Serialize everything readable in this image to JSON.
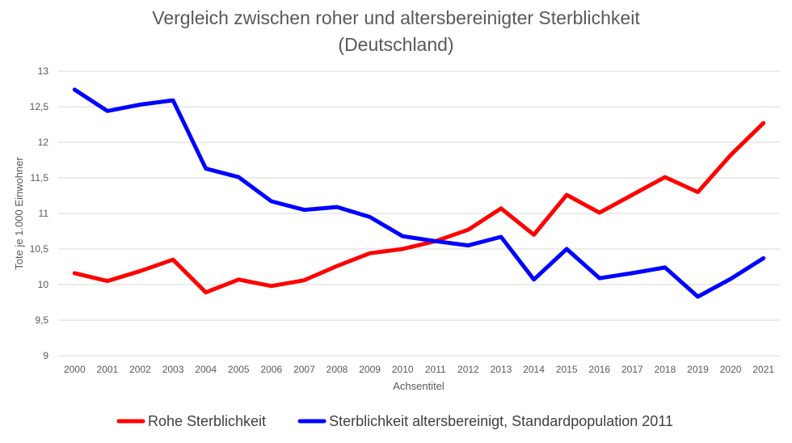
{
  "chart_data": {
    "type": "line",
    "title": "Vergleich zwischen roher und altersbereinigter Sterblichkeit",
    "subtitle": "(Deutschland)",
    "xlabel": "Achsentitel",
    "ylabel": "Tote je 1.000 Einwohner",
    "ylim": [
      9,
      13
    ],
    "y_ticks": [
      "9",
      "9,5",
      "10",
      "10,5",
      "11",
      "11,5",
      "12",
      "12,5",
      "13"
    ],
    "y_tick_values": [
      9,
      9.5,
      10,
      10.5,
      11,
      11.5,
      12,
      12.5,
      13
    ],
    "categories": [
      "2000",
      "2001",
      "2002",
      "2003",
      "2004",
      "2005",
      "2006",
      "2007",
      "2008",
      "2009",
      "2010",
      "2011",
      "2012",
      "2013",
      "2014",
      "2015",
      "2016",
      "2017",
      "2018",
      "2019",
      "2020",
      "2021"
    ],
    "grid": "horizontal",
    "legend_position": "bottom",
    "series": [
      {
        "name": "Rohe Sterblichkeit",
        "color": "#ff0000",
        "values": [
          10.16,
          10.05,
          10.19,
          10.35,
          9.89,
          10.07,
          9.98,
          10.06,
          10.26,
          10.44,
          10.5,
          10.61,
          10.77,
          11.07,
          10.7,
          11.26,
          11.01,
          11.26,
          11.51,
          11.3,
          11.82,
          12.27
        ]
      },
      {
        "name": "Sterblichkeit altersbereinigt, Standardpopulation 2011",
        "color": "#0000ff",
        "values": [
          12.74,
          12.44,
          12.53,
          12.59,
          11.63,
          11.51,
          11.17,
          11.05,
          11.09,
          10.95,
          10.68,
          10.61,
          10.55,
          10.67,
          10.07,
          10.5,
          10.09,
          10.16,
          10.24,
          9.83,
          10.08,
          10.37
        ]
      }
    ]
  }
}
